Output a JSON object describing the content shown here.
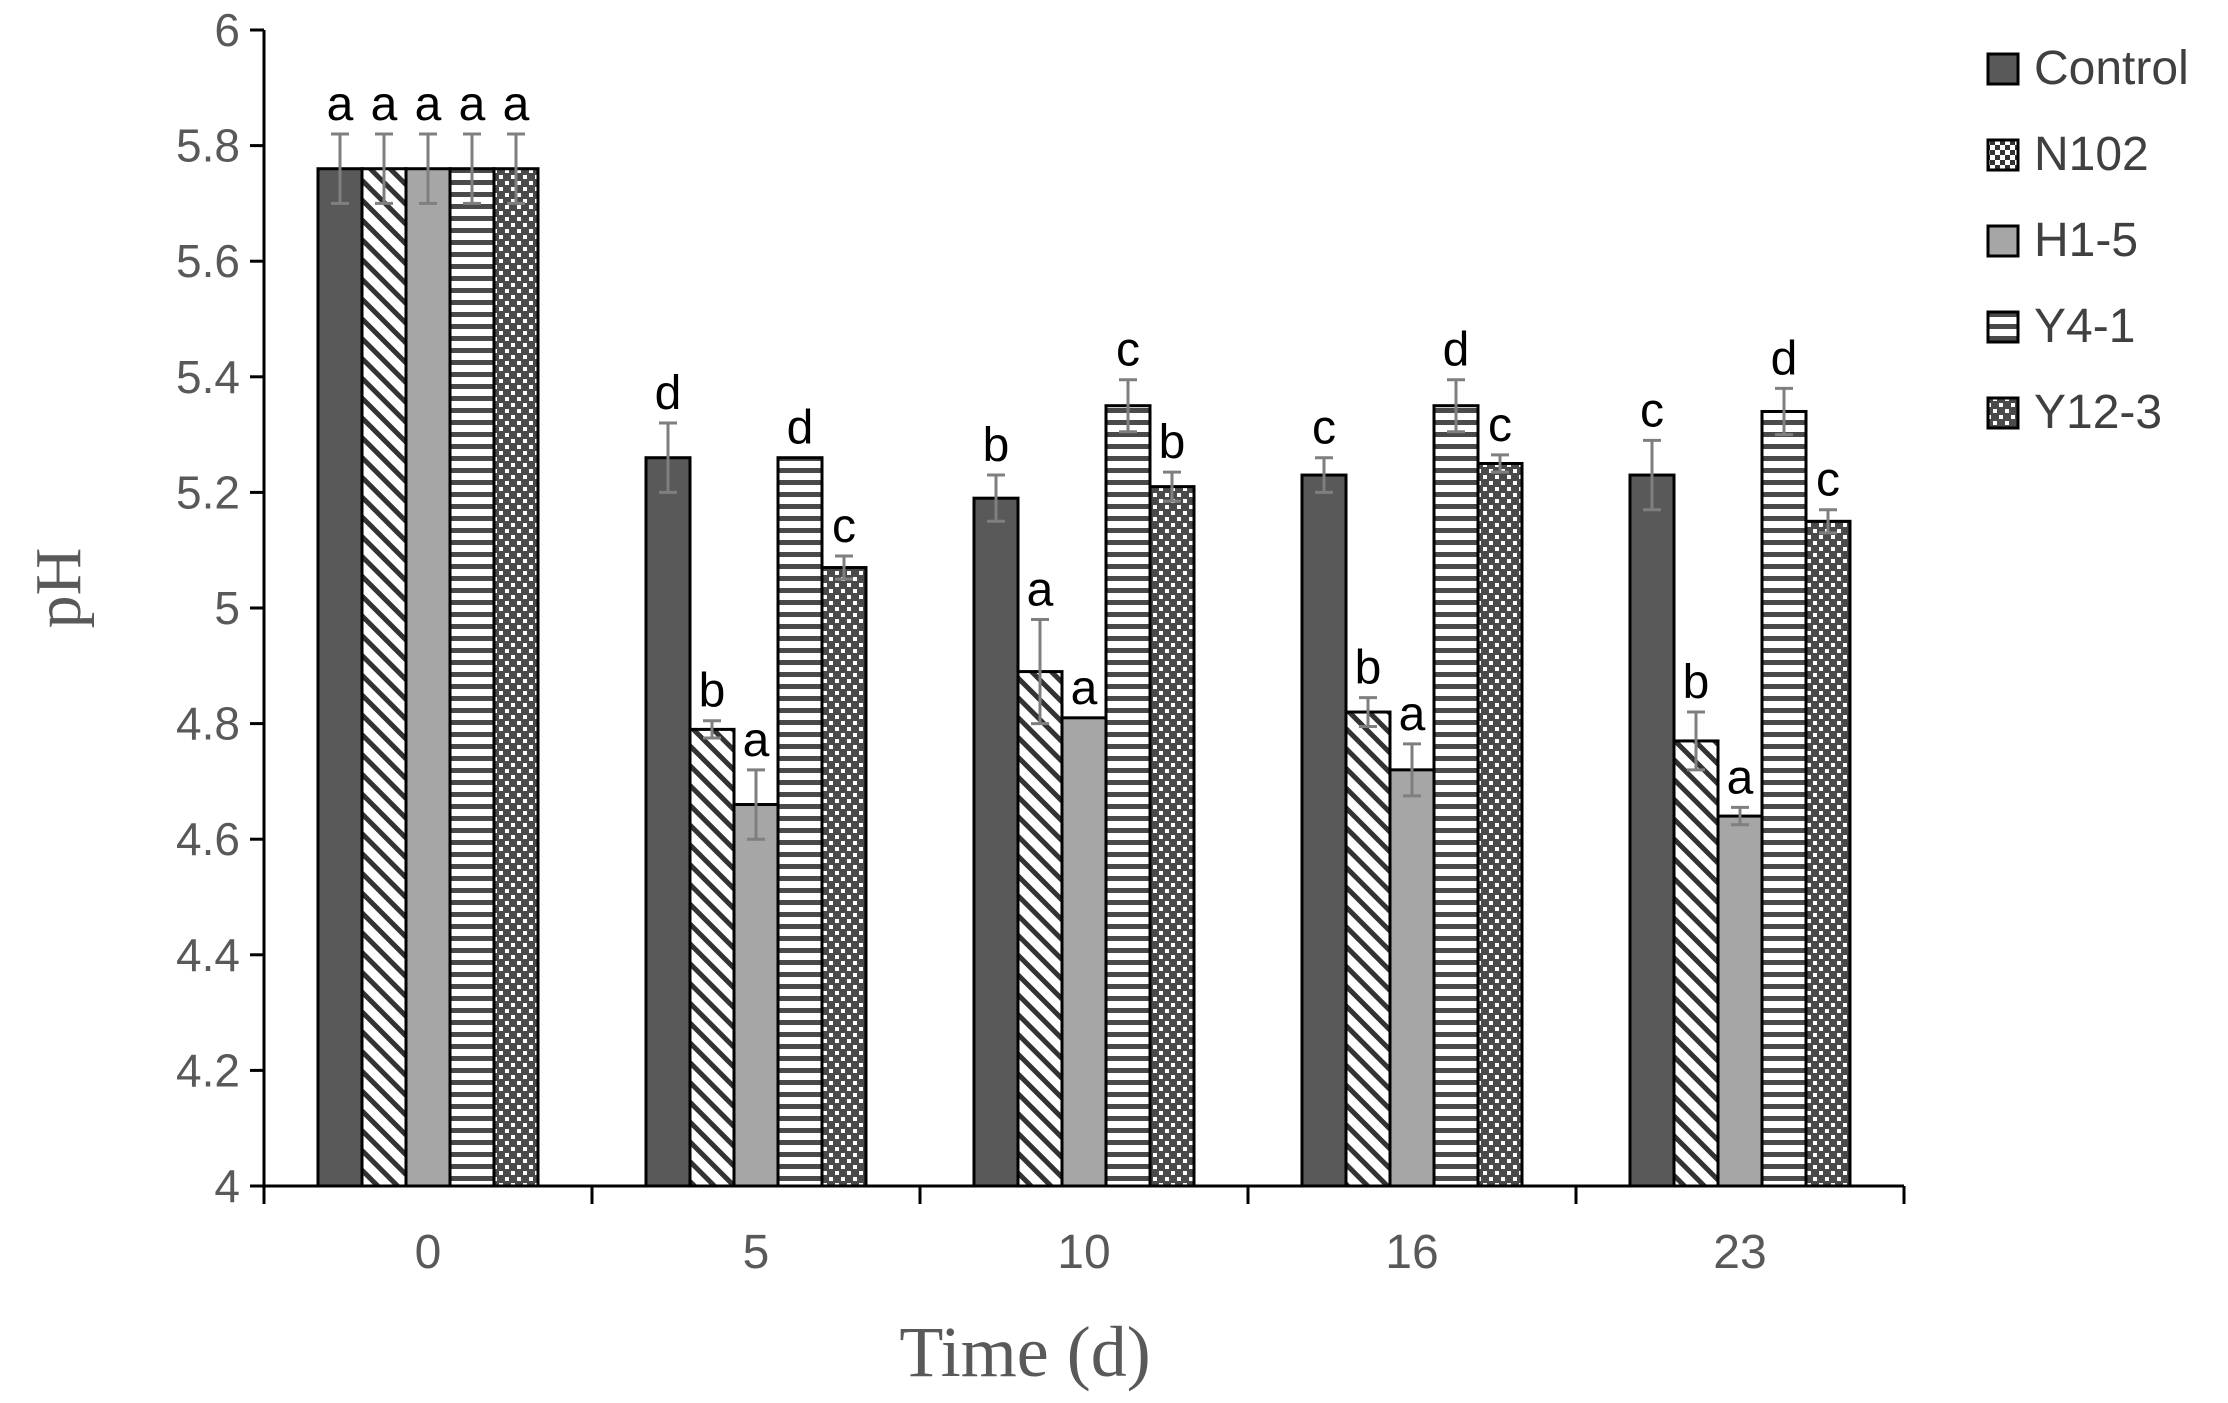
{
  "chart_data": {
    "type": "bar",
    "xlabel": "Time (d)",
    "ylabel": "pH",
    "ylim": [
      4,
      6
    ],
    "yticks": [
      "4",
      "4.2",
      "4.4",
      "4.6",
      "4.8",
      "5",
      "5.2",
      "5.4",
      "5.6",
      "5.8",
      "6"
    ],
    "categories": [
      "0",
      "5",
      "10",
      "16",
      "23"
    ],
    "grid": false,
    "legend_position": "right",
    "series": [
      {
        "name": "Control",
        "pattern": "solid-dark",
        "values": [
          5.76,
          5.26,
          5.19,
          5.23,
          5.23
        ],
        "errors": [
          0.06,
          0.06,
          0.04,
          0.03,
          0.06
        ],
        "letters": [
          "a",
          "d",
          "b",
          "c",
          "c"
        ]
      },
      {
        "name": "N102",
        "pattern": "diagonal-hatch",
        "values": [
          5.76,
          4.79,
          4.89,
          4.82,
          4.77
        ],
        "errors": [
          0.06,
          0.015,
          0.09,
          0.025,
          0.05
        ],
        "letters": [
          "a",
          "b",
          "a",
          "b",
          "b"
        ]
      },
      {
        "name": "H1-5",
        "pattern": "solid-gray",
        "values": [
          5.76,
          4.66,
          4.81,
          4.72,
          4.64
        ],
        "errors": [
          0.06,
          0.06,
          0.0,
          0.045,
          0.015
        ],
        "letters": [
          "a",
          "a",
          "a",
          "a",
          "a"
        ]
      },
      {
        "name": "Y4-1",
        "pattern": "horizontal-stripes",
        "values": [
          5.76,
          5.26,
          5.35,
          5.35,
          5.34
        ],
        "errors": [
          0.06,
          0.0,
          0.045,
          0.045,
          0.04
        ],
        "letters": [
          "a",
          "d",
          "c",
          "d",
          "d"
        ]
      },
      {
        "name": "Y12-3",
        "pattern": "dotted-dark",
        "values": [
          5.76,
          5.07,
          5.21,
          5.25,
          5.15
        ],
        "errors": [
          0.06,
          0.02,
          0.025,
          0.015,
          0.02
        ],
        "letters": [
          "a",
          "c",
          "b",
          "c",
          "c"
        ]
      }
    ]
  },
  "colors": {
    "axis": "#000000",
    "tick_label": "#595959",
    "control_fill": "#595959",
    "h15_fill": "#a6a6a6",
    "error_bar": "#7f7f7f"
  }
}
